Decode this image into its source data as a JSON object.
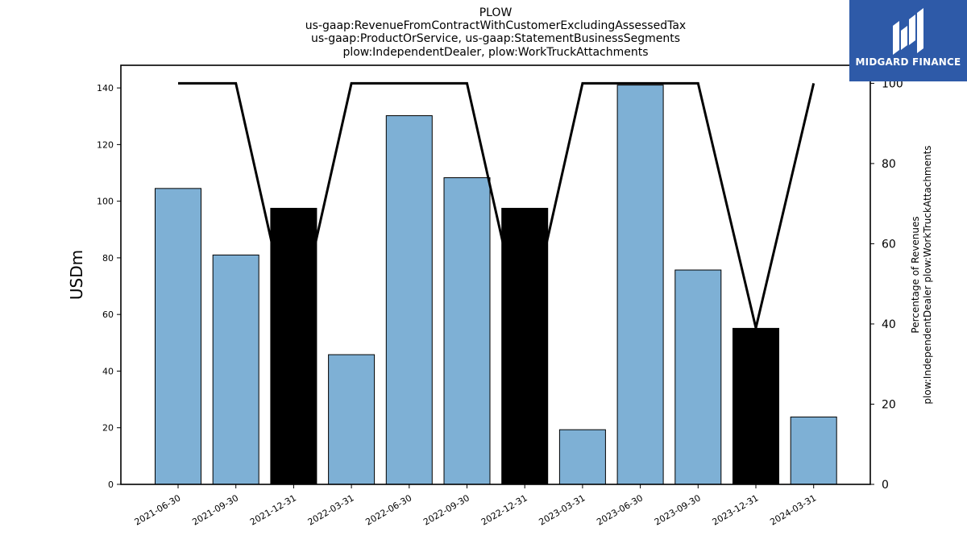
{
  "chart_data": {
    "type": "bar",
    "title_lines": [
      "PLOW",
      "us-gaap:RevenueFromContractWithCustomerExcludingAssessedTax",
      "us-gaap:ProductOrService, us-gaap:StatementBusinessSegments",
      "plow:IndependentDealer, plow:WorkTruckAttachments"
    ],
    "categories": [
      "2021-06-30",
      "2021-09-30",
      "2021-12-31",
      "2022-03-31",
      "2022-06-30",
      "2022-09-30",
      "2022-12-31",
      "2023-03-31",
      "2023-06-30",
      "2023-09-30",
      "2023-12-31",
      "2024-03-31"
    ],
    "values": [
      104.5,
      81,
      97.5,
      45.8,
      130.2,
      108.3,
      97.5,
      19.3,
      141,
      75.7,
      55.1,
      23.8
    ],
    "bar_colors": [
      "#7eb0d5",
      "#7eb0d5",
      "#000000",
      "#7eb0d5",
      "#7eb0d5",
      "#7eb0d5",
      "#000000",
      "#7eb0d5",
      "#7eb0d5",
      "#7eb0d5",
      "#000000",
      "#7eb0d5"
    ],
    "ylabel": "USDm",
    "ylim": [
      0,
      148
    ],
    "yticks": [
      0,
      20,
      40,
      60,
      80,
      100,
      120,
      140
    ],
    "secondary": {
      "ylabel_lines": [
        "Percentage of Revenues",
        "plow:IndependentDealer plow:WorkTruckAttachments"
      ],
      "values": [
        100,
        100,
        36,
        100,
        100,
        100,
        36,
        100,
        100,
        100,
        39,
        100
      ],
      "ylim": [
        0,
        104.5
      ],
      "yticks": [
        0,
        20,
        40,
        60,
        80,
        100
      ],
      "color": "#000000"
    },
    "grid": false
  },
  "logo": {
    "text": "MIDGARD FINANCE",
    "icon": "midgard-logo-icon",
    "bg": "#2e5aa8"
  }
}
